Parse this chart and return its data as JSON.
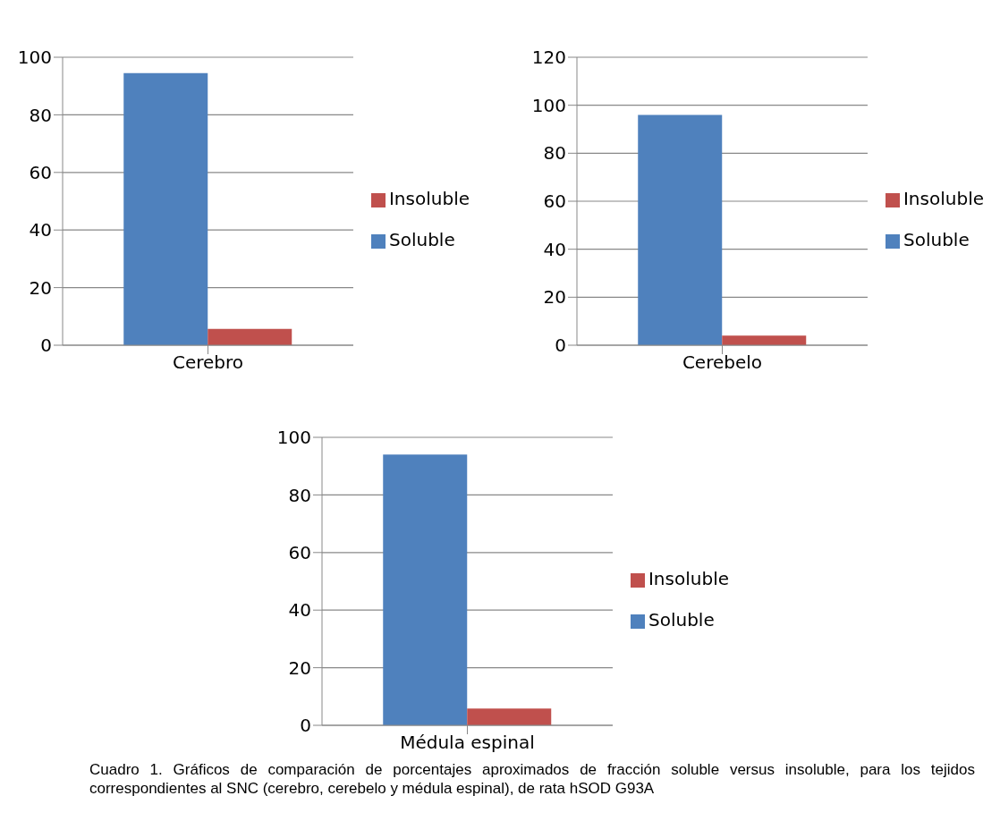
{
  "chart_data": [
    {
      "type": "bar",
      "categories": [
        "Cerebro"
      ],
      "series": [
        {
          "name": "Soluble",
          "color": "#4f81bd",
          "values": [
            94.5
          ]
        },
        {
          "name": "Insoluble",
          "color": "#c0504d",
          "values": [
            5.7
          ]
        }
      ],
      "ylim": [
        0,
        100
      ],
      "yticks": [
        0,
        20,
        40,
        60,
        80,
        100
      ],
      "grid": "y",
      "legend": "right"
    },
    {
      "type": "bar",
      "categories": [
        "Cerebelo"
      ],
      "series": [
        {
          "name": "Soluble",
          "color": "#4f81bd",
          "values": [
            96
          ]
        },
        {
          "name": "Insoluble",
          "color": "#c0504d",
          "values": [
            4
          ]
        }
      ],
      "ylim": [
        0,
        120
      ],
      "yticks": [
        0,
        20,
        40,
        60,
        80,
        100,
        120
      ],
      "grid": "y",
      "legend": "right"
    },
    {
      "type": "bar",
      "categories": [
        "Médula espinal"
      ],
      "series": [
        {
          "name": "Soluble",
          "color": "#4f81bd",
          "values": [
            94
          ]
        },
        {
          "name": "Insoluble",
          "color": "#c0504d",
          "values": [
            5.8
          ]
        }
      ],
      "ylim": [
        0,
        100
      ],
      "yticks": [
        0,
        20,
        40,
        60,
        80,
        100
      ],
      "grid": "y",
      "legend": "right",
      "annotations": [
        "Cuadro 1.  Gráficos  de comparación  de porcentajes aproximados de fracción soluble versus insoluble, para los tejidos correspondientes al SNC (cerebro, cerebelo y médula espinal), de rata hSOD G93A"
      ]
    }
  ]
}
